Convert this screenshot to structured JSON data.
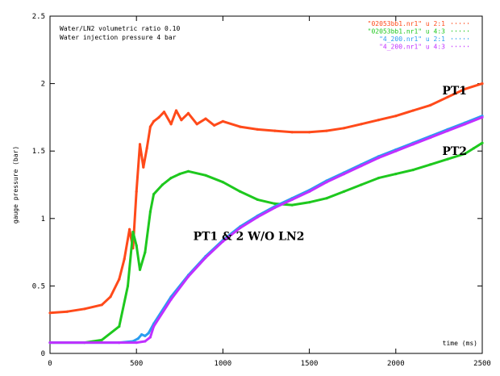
{
  "chart_data": {
    "type": "line",
    "xlabel": "time (ms)",
    "ylabel": "gauge pressure (bar)",
    "xlim": [
      0,
      2500
    ],
    "ylim": [
      0,
      2.5
    ],
    "xticks": [
      0,
      500,
      1000,
      1500,
      2000,
      2500
    ],
    "yticks": [
      0,
      0.5,
      1,
      1.5,
      2,
      2.5
    ],
    "ytick_labels": [
      "0",
      "0.5",
      "1",
      "1.5",
      "2",
      "2.5"
    ],
    "notes": [
      "Water/LN2 volumetric ratio 0.10",
      "Water injection pressure 4 bar"
    ],
    "grid": false,
    "legend_position": "top-right",
    "series": [
      {
        "name": "\"02053bb1.nr1\" u 2:1",
        "color": "#ff4a1a",
        "x": [
          0,
          100,
          200,
          300,
          350,
          400,
          430,
          460,
          480,
          500,
          520,
          540,
          560,
          580,
          600,
          630,
          660,
          700,
          730,
          760,
          800,
          850,
          900,
          950,
          1000,
          1100,
          1200,
          1300,
          1400,
          1500,
          1600,
          1700,
          1800,
          1900,
          2000,
          2100,
          2200,
          2300,
          2400,
          2500
        ],
        "values": [
          0.3,
          0.31,
          0.33,
          0.36,
          0.42,
          0.55,
          0.7,
          0.92,
          0.78,
          1.2,
          1.55,
          1.38,
          1.52,
          1.68,
          1.72,
          1.75,
          1.79,
          1.7,
          1.8,
          1.73,
          1.78,
          1.7,
          1.74,
          1.69,
          1.72,
          1.68,
          1.66,
          1.65,
          1.64,
          1.64,
          1.65,
          1.67,
          1.7,
          1.73,
          1.76,
          1.8,
          1.84,
          1.9,
          1.96,
          2.0
        ]
      },
      {
        "name": "\"02053bb1.nr1\" u 4:3",
        "color": "#1ec81e",
        "x": [
          0,
          200,
          300,
          400,
          450,
          480,
          500,
          520,
          550,
          580,
          600,
          650,
          700,
          750,
          800,
          900,
          1000,
          1100,
          1200,
          1300,
          1400,
          1500,
          1600,
          1700,
          1800,
          1900,
          2000,
          2100,
          2200,
          2300,
          2400,
          2450,
          2500
        ],
        "values": [
          0.08,
          0.08,
          0.1,
          0.2,
          0.5,
          0.9,
          0.8,
          0.62,
          0.75,
          1.05,
          1.18,
          1.25,
          1.3,
          1.33,
          1.35,
          1.32,
          1.27,
          1.2,
          1.14,
          1.11,
          1.1,
          1.12,
          1.15,
          1.2,
          1.25,
          1.3,
          1.33,
          1.36,
          1.4,
          1.44,
          1.48,
          1.52,
          1.56
        ]
      },
      {
        "name": "\"4_200.nr1\" u 2:1",
        "color": "#2a9df0",
        "x": [
          0,
          400,
          480,
          510,
          530,
          550,
          570,
          600,
          700,
          800,
          900,
          1000,
          1100,
          1200,
          1300,
          1400,
          1500,
          1600,
          1700,
          1800,
          1900,
          2000,
          2100,
          2200,
          2300,
          2400,
          2500
        ],
        "values": [
          0.08,
          0.08,
          0.09,
          0.11,
          0.14,
          0.13,
          0.15,
          0.22,
          0.42,
          0.58,
          0.72,
          0.84,
          0.94,
          1.02,
          1.09,
          1.15,
          1.21,
          1.28,
          1.34,
          1.4,
          1.46,
          1.51,
          1.56,
          1.61,
          1.66,
          1.71,
          1.76
        ]
      },
      {
        "name": "\"4_200.nr1\" u 4:3",
        "color": "#c030ff",
        "x": [
          0,
          400,
          500,
          550,
          580,
          600,
          700,
          800,
          900,
          1000,
          1100,
          1200,
          1300,
          1400,
          1500,
          1600,
          1700,
          1800,
          1900,
          2000,
          2100,
          2200,
          2300,
          2400,
          2500
        ],
        "values": [
          0.08,
          0.08,
          0.08,
          0.09,
          0.12,
          0.2,
          0.4,
          0.57,
          0.71,
          0.83,
          0.93,
          1.01,
          1.08,
          1.14,
          1.2,
          1.27,
          1.33,
          1.39,
          1.45,
          1.5,
          1.55,
          1.6,
          1.65,
          1.7,
          1.75
        ]
      }
    ],
    "annotations": [
      {
        "text": "PT1",
        "x": 2340,
        "y": 1.92
      },
      {
        "text": "PT2",
        "x": 2340,
        "y": 1.47
      },
      {
        "text": "PT1 & 2 W/O LN2",
        "x": 1150,
        "y": 0.84
      }
    ]
  }
}
